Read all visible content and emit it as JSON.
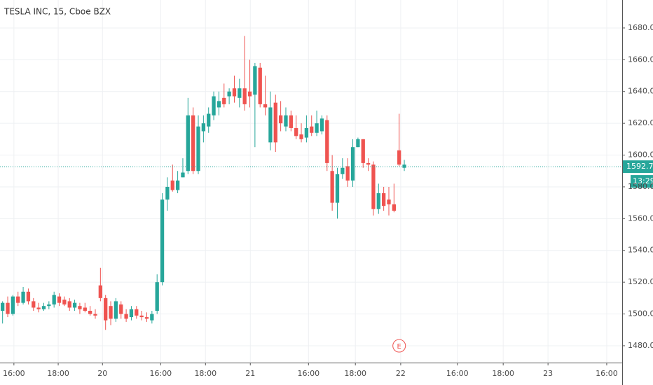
{
  "chart_data": {
    "type": "candlestick",
    "title": "TESLA INC, 15, Cboe BZX",
    "up_color": "#26a69a",
    "down_color": "#ef5350",
    "grid": true,
    "open": [
      1502,
      1507,
      1500,
      1511,
      1507,
      1514,
      1508,
      1504,
      1503,
      1505,
      1506,
      1511,
      1509,
      1508,
      1504,
      1505,
      1504,
      1502,
      1500,
      1518,
      1510,
      1505,
      1497,
      1506,
      1500,
      1498,
      1503,
      1499,
      1498,
      1496,
      1502,
      1520,
      1572,
      1584,
      1578,
      1586,
      1590,
      1625,
      1590,
      1615,
      1618,
      1625,
      1630,
      1636,
      1637,
      1642,
      1636,
      1642,
      1640,
      1638,
      1655,
      1632,
      1608,
      1633,
      1625,
      1618,
      1625,
      1617,
      1613,
      1611,
      1618,
      1614,
      1615,
      1622,
      1590,
      1570,
      1588,
      1593,
      1584,
      1605,
      1610,
      1595,
      1594,
      1566,
      1576,
      1572,
      1569,
      1603,
      1592
    ],
    "high": [
      1508,
      1511,
      1512,
      1514,
      1517,
      1516,
      1510,
      1507,
      1507,
      1508,
      1514,
      1513,
      1511,
      1510,
      1509,
      1507,
      1507,
      1505,
      1503,
      1529,
      1512,
      1508,
      1510,
      1508,
      1503,
      1505,
      1505,
      1502,
      1501,
      1502,
      1525,
      1576,
      1586,
      1594,
      1590,
      1598,
      1636,
      1630,
      1625,
      1625,
      1630,
      1640,
      1640,
      1645,
      1642,
      1650,
      1648,
      1675,
      1660,
      1658,
      1658,
      1650,
      1640,
      1638,
      1634,
      1630,
      1628,
      1625,
      1620,
      1625,
      1625,
      1628,
      1625,
      1625,
      1600,
      1592,
      1598,
      1598,
      1610,
      1611,
      1610,
      1598,
      1596,
      1582,
      1580,
      1580,
      1582,
      1626,
      1597
    ],
    "low": [
      1494,
      1498,
      1499,
      1505,
      1506,
      1506,
      1502,
      1501,
      1502,
      1503,
      1504,
      1505,
      1505,
      1502,
      1502,
      1500,
      1501,
      1499,
      1497,
      1508,
      1490,
      1493,
      1495,
      1497,
      1495,
      1496,
      1497,
      1496,
      1495,
      1494,
      1500,
      1518,
      1565,
      1577,
      1576,
      1586,
      1588,
      1588,
      1588,
      1608,
      1614,
      1622,
      1625,
      1630,
      1632,
      1633,
      1630,
      1628,
      1630,
      1605,
      1630,
      1625,
      1603,
      1602,
      1615,
      1615,
      1615,
      1610,
      1608,
      1608,
      1612,
      1612,
      1613,
      1590,
      1565,
      1560,
      1585,
      1580,
      1580,
      1605,
      1592,
      1590,
      1562,
      1563,
      1565,
      1562,
      1564,
      1593,
      1590
    ],
    "close": [
      1507,
      1500,
      1511,
      1507,
      1514,
      1508,
      1504,
      1503,
      1505,
      1506,
      1512,
      1507,
      1506,
      1504,
      1507,
      1503,
      1502,
      1500,
      1499,
      1510,
      1496,
      1497,
      1508,
      1500,
      1497,
      1503,
      1499,
      1498,
      1497,
      1500,
      1520,
      1572,
      1580,
      1578,
      1584,
      1589,
      1625,
      1590,
      1618,
      1620,
      1626,
      1637,
      1634,
      1632,
      1640,
      1637,
      1642,
      1632,
      1637,
      1656,
      1632,
      1630,
      1630,
      1608,
      1620,
      1625,
      1617,
      1612,
      1610,
      1617,
      1614,
      1620,
      1623,
      1595,
      1570,
      1588,
      1592,
      1584,
      1605,
      1610,
      1595,
      1594,
      1566,
      1576,
      1568,
      1569,
      1565,
      1594,
      1594
    ],
    "xlim": [
      -0.5,
      120.3
    ],
    "xticks": [
      {
        "value": 2.2,
        "label": "16:00"
      },
      {
        "value": 10.8,
        "label": "18:00"
      },
      {
        "value": 19.4,
        "label": "20"
      },
      {
        "value": 30.7,
        "label": "16:00"
      },
      {
        "value": 39.4,
        "label": "18:00"
      },
      {
        "value": 48.1,
        "label": "21"
      },
      {
        "value": 59.4,
        "label": "16:00"
      },
      {
        "value": 68.5,
        "label": "18:00"
      },
      {
        "value": 77.3,
        "label": "22"
      },
      {
        "value": 88.3,
        "label": "16:00"
      },
      {
        "value": 97.2,
        "label": "18:00"
      },
      {
        "value": 105.9,
        "label": "23"
      },
      {
        "value": 117.3,
        "label": "16:00"
      }
    ],
    "ylim": [
      1469.4,
      1697.6
    ],
    "yticks": [
      {
        "value": 1480,
        "label": "1480.00"
      },
      {
        "value": 1500,
        "label": "1500.00"
      },
      {
        "value": 1520,
        "label": "1520.00"
      },
      {
        "value": 1540,
        "label": "1540.00"
      },
      {
        "value": 1560,
        "label": "1560.00"
      },
      {
        "value": 1580,
        "label": "1580.00"
      },
      {
        "value": 1600,
        "label": "1600.00"
      },
      {
        "value": 1620,
        "label": "1620.00"
      },
      {
        "value": 1640,
        "label": "1640.00"
      },
      {
        "value": 1660,
        "label": "1660.00"
      },
      {
        "value": 1680,
        "label": "1680.00"
      }
    ],
    "last_price": 1592.71,
    "countdown": "13:29",
    "earnings_marker": "E"
  }
}
